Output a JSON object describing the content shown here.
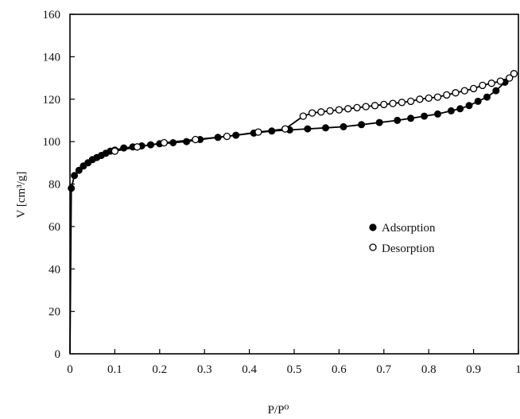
{
  "chart_data": {
    "type": "scatter",
    "title": "",
    "xlabel": "P/P⁰",
    "ylabel": "V [cm³/g]",
    "xlim": [
      0,
      1
    ],
    "ylim": [
      0,
      160
    ],
    "xticks": [
      0,
      0.1,
      0.2,
      0.3,
      0.4,
      0.5,
      0.6,
      0.7,
      0.8,
      0.9,
      1
    ],
    "xtick_labels": [
      "0",
      "0.1",
      "0.2",
      "0.3",
      "0.4",
      "0.5",
      "0.6",
      "0.7",
      "0.8",
      "0.9",
      "1"
    ],
    "yticks": [
      0,
      20,
      40,
      60,
      80,
      100,
      120,
      140,
      160
    ],
    "ytick_labels": [
      "0",
      "20",
      "40",
      "60",
      "80",
      "100",
      "120",
      "140",
      "160"
    ],
    "grid": false,
    "legend": {
      "position": "center-right",
      "entries": [
        "Adsorption",
        "Desorption"
      ]
    },
    "series": [
      {
        "name": "Adsorption",
        "marker": "filled-circle",
        "color": "#000000",
        "x": [
          0.0,
          0.003,
          0.01,
          0.02,
          0.03,
          0.04,
          0.05,
          0.06,
          0.07,
          0.08,
          0.09,
          0.1,
          0.12,
          0.14,
          0.16,
          0.18,
          0.2,
          0.23,
          0.26,
          0.29,
          0.33,
          0.37,
          0.41,
          0.45,
          0.49,
          0.53,
          0.57,
          0.61,
          0.65,
          0.69,
          0.73,
          0.76,
          0.79,
          0.82,
          0.85,
          0.87,
          0.89,
          0.91,
          0.93,
          0.95,
          0.97,
          0.99
        ],
        "y": [
          0,
          78,
          84,
          86.5,
          88.5,
          90,
          91.5,
          92.5,
          93.5,
          94.5,
          95.5,
          96,
          97,
          97.5,
          98,
          98.5,
          99,
          99.5,
          100,
          101,
          102,
          103,
          104,
          105,
          105.5,
          106,
          106.5,
          107,
          108,
          109,
          110,
          111,
          112,
          113,
          114.5,
          115.5,
          117,
          119,
          121,
          124,
          128,
          132
        ]
      },
      {
        "name": "Desorption",
        "marker": "open-circle",
        "color": "#000000",
        "x": [
          0.99,
          0.98,
          0.96,
          0.94,
          0.92,
          0.9,
          0.88,
          0.86,
          0.84,
          0.82,
          0.8,
          0.78,
          0.76,
          0.74,
          0.72,
          0.7,
          0.68,
          0.66,
          0.64,
          0.62,
          0.6,
          0.58,
          0.56,
          0.54,
          0.52,
          0.48,
          0.42,
          0.35,
          0.28,
          0.21,
          0.15,
          0.1
        ],
        "y": [
          132,
          130,
          128.5,
          127.5,
          126.5,
          125,
          124,
          123,
          122,
          121,
          120.5,
          120,
          119,
          118.5,
          118,
          117.5,
          117,
          116.5,
          116,
          115.5,
          115,
          114.5,
          114,
          113.5,
          112,
          106,
          104.5,
          102.5,
          101,
          99.5,
          97.5,
          95.5
        ]
      }
    ]
  }
}
